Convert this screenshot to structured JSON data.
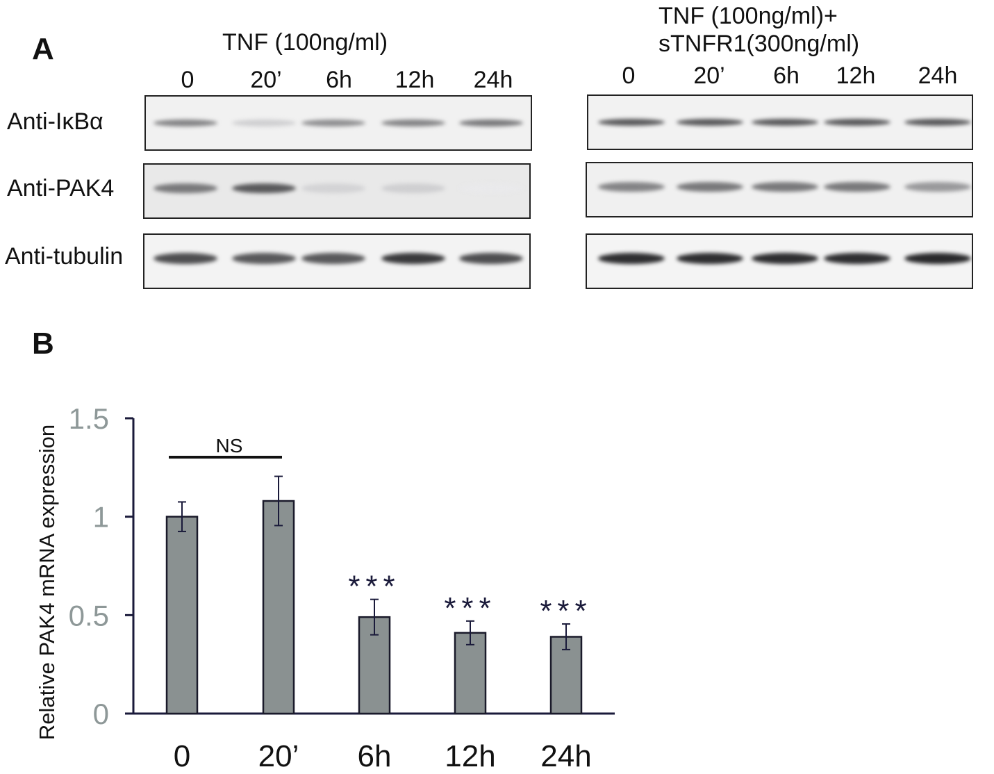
{
  "panel_a": {
    "letter": "A",
    "left_condition": "TNF (100ng/ml)",
    "right_condition_line1": "TNF (100ng/ml)+",
    "right_condition_line2": "sTNFR1(300ng/ml)",
    "lanes": [
      "0",
      "20’",
      "6h",
      "12h",
      "24h"
    ],
    "rows": [
      "Anti-IκBα",
      "Anti-PAK4",
      "Anti-tubulin"
    ],
    "band_intensity": {
      "left": {
        "ikba": [
          0.55,
          0.2,
          0.5,
          0.55,
          0.6
        ],
        "pak4": [
          0.6,
          0.75,
          0.18,
          0.2,
          0.08
        ],
        "tubulin": [
          0.8,
          0.75,
          0.75,
          0.9,
          0.8
        ]
      },
      "right": {
        "ikba": [
          0.75,
          0.75,
          0.75,
          0.75,
          0.75
        ],
        "pak4": [
          0.55,
          0.6,
          0.6,
          0.6,
          0.45
        ],
        "tubulin": [
          0.95,
          0.95,
          0.95,
          0.95,
          0.97
        ]
      }
    }
  },
  "panel_b": {
    "letter": "B"
  },
  "chart_data": {
    "type": "bar",
    "categories": [
      "0",
      "20’",
      "6h",
      "12h",
      "24h"
    ],
    "values": [
      1.0,
      1.08,
      0.49,
      0.41,
      0.39
    ],
    "errors": [
      0.075,
      0.125,
      0.09,
      0.06,
      0.065
    ],
    "ylabel": "Relative PAK4 mRNA expression",
    "xlabel": "",
    "ylim": [
      0,
      1.5
    ],
    "yticks": [
      "0",
      "0.5",
      "1",
      "1.5"
    ],
    "ytick_values": [
      0,
      0.5,
      1,
      1.5
    ],
    "significance": [
      "",
      "",
      "***",
      "***",
      "***"
    ],
    "ns_label": "NS",
    "bar_color": "#8a9191",
    "tick_label_color": "#8e9898",
    "axis_color": "#1a1a3a"
  }
}
